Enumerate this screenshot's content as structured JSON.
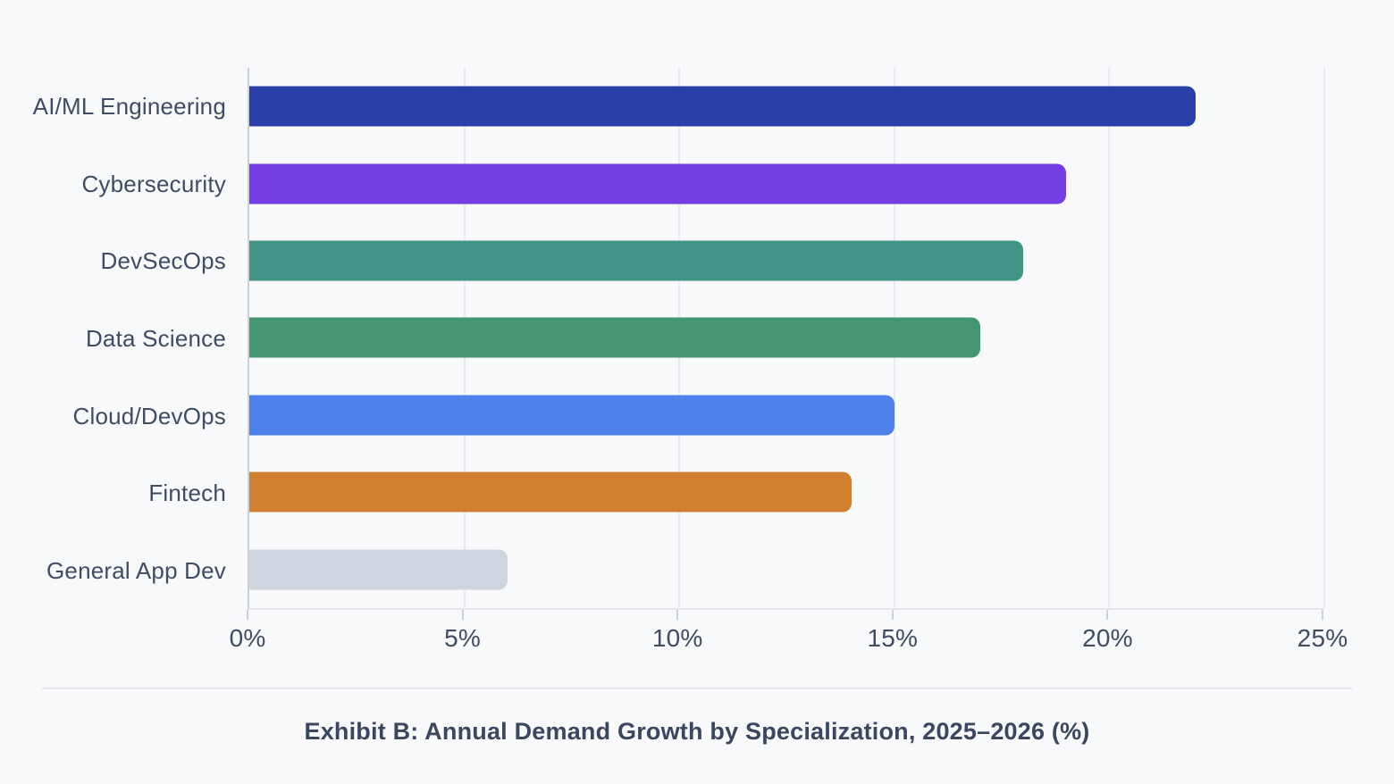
{
  "chart_data": {
    "type": "bar",
    "orientation": "horizontal",
    "title": "Exhibit B: Annual Demand Growth by Specialization, 2025–2026 (%)",
    "xlabel": "",
    "ylabel": "",
    "xlim": [
      0,
      25
    ],
    "grid": "vertical",
    "legend": "none",
    "categories": [
      "AI/ML Engineering",
      "Cybersecurity",
      "DevSecOps",
      "Data Science",
      "Cloud/DevOps",
      "Fintech",
      "General App Dev"
    ],
    "values": [
      22,
      19,
      18,
      17,
      15,
      14,
      6
    ],
    "bar_colors": [
      "#2B3FA9",
      "#743EE4",
      "#429489",
      "#459670",
      "#4D80E8",
      "#D0802F",
      "#CFD5DE"
    ],
    "x_ticks": [
      {
        "value": 0,
        "label": "0%"
      },
      {
        "value": 5,
        "label": "5%"
      },
      {
        "value": 10,
        "label": "10%"
      },
      {
        "value": 15,
        "label": "15%"
      },
      {
        "value": 20,
        "label": "20%"
      },
      {
        "value": 25,
        "label": "25%"
      }
    ],
    "colors": {
      "background": "#F8F9FB",
      "label_text": "#3F4C63",
      "grid_line": "#E8EBF1",
      "axis_line": "#C9D1DB",
      "axis_bottom_line": "#E3E7ED",
      "divider": "#E4E6EC",
      "caption_text": "#3B4760"
    }
  }
}
